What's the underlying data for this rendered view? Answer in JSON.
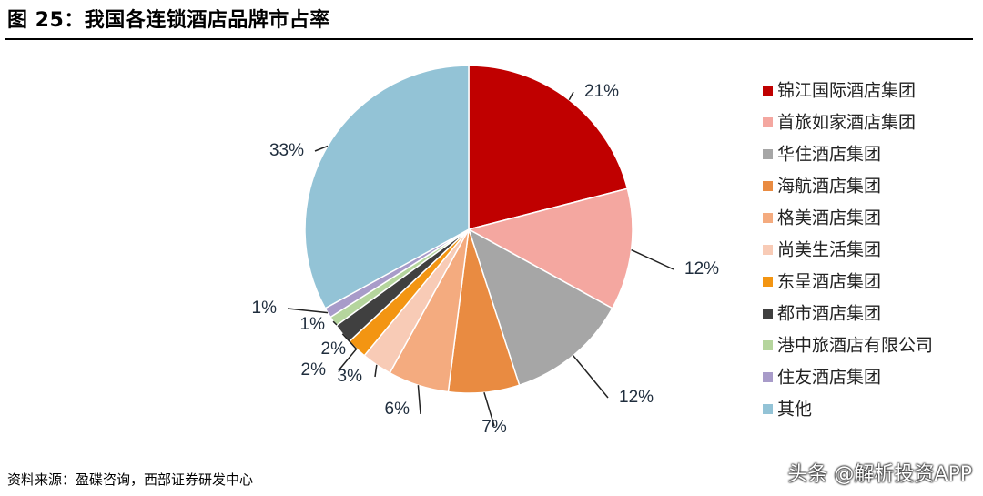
{
  "figure": {
    "title": "图 25：我国各连锁酒店品牌市占率",
    "source": "资料来源：盈碟咨询，西部证券研发中心",
    "watermark": "头条 @解析投资APP"
  },
  "chart_data": {
    "type": "pie",
    "start": "12 o'clock",
    "direction": "clockwise",
    "legend_position": "right",
    "slices": [
      {
        "label": "锦江国际酒店集团",
        "value": 21,
        "display": "21%",
        "color": "#C00000"
      },
      {
        "label": "首旅如家酒店集团",
        "value": 12,
        "display": "12%",
        "color": "#F4A7A0"
      },
      {
        "label": "华住酒店集团",
        "value": 12,
        "display": "12%",
        "color": "#A6A6A6"
      },
      {
        "label": "海航酒店集团",
        "value": 7,
        "display": "7%",
        "color": "#E98B41"
      },
      {
        "label": "格美酒店集团",
        "value": 6,
        "display": "6%",
        "color": "#F4AB7F"
      },
      {
        "label": "尚美生活集团",
        "value": 3,
        "display": "3%",
        "color": "#F8CBB6"
      },
      {
        "label": "东呈酒店集团",
        "value": 2,
        "display": "2%",
        "color": "#F39512"
      },
      {
        "label": "都市酒店集团",
        "value": 2,
        "display": "2%",
        "color": "#404040"
      },
      {
        "label": "港中旅酒店有限公司",
        "value": 1,
        "display": "1%",
        "color": "#B5D59D"
      },
      {
        "label": "住友酒店集团",
        "value": 1,
        "display": "1%",
        "color": "#A89BC9"
      },
      {
        "label": "其他",
        "value": 33,
        "display": "33%",
        "color": "#93C3D6"
      }
    ]
  }
}
